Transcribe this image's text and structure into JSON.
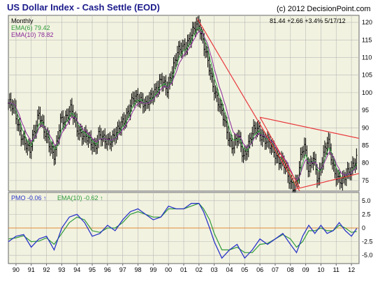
{
  "header": {
    "title": "US Dollar Index - Cash Settle (EOD)",
    "source": "(c) 2012 DecisionPoint.com",
    "quote": "81.44  +2.66  +3.4%  5/17/12"
  },
  "colors": {
    "background": "#f2f2e0",
    "frame": "#666666",
    "grid": "#b8b8b8",
    "price": "#000000",
    "ema6": "#2e9a3a",
    "ema10": "#8a2a9a",
    "trendline": "#e8383c",
    "pmo_line": "#2a36c8",
    "pmo_signal": "#2e9a3a",
    "pmo_zero": "#e08a3a",
    "dashed_level": "#b02a5a",
    "title": "#1a1a8a",
    "axis_text": "#000000"
  },
  "chart_data": [
    {
      "type": "line",
      "title": "US Dollar Index - Cash Settle (EOD)",
      "period_label": "Monthly",
      "legend_placement": "top-left",
      "grid": true,
      "ylim": [
        72,
        122
      ],
      "yticks": [
        75,
        80,
        85,
        90,
        95,
        100,
        105,
        110,
        115,
        120
      ],
      "ytick_labels": [
        "75",
        "80",
        "85",
        "90",
        "95",
        "100",
        "105",
        "110",
        "115",
        "120"
      ],
      "xlim": [
        1989.5,
        2012.5
      ],
      "series": [
        {
          "name": "US Dollar Index",
          "style": "ohlc-bars",
          "x": [
            1989.5,
            1989.9,
            1990.2,
            1990.6,
            1990.9,
            1991.1,
            1991.5,
            1991.8,
            1992.1,
            1992.5,
            1992.7,
            1992.9,
            1993.2,
            1993.6,
            1994.0,
            1994.4,
            1994.8,
            1995.2,
            1995.4,
            1995.8,
            1996.2,
            1996.6,
            1997.0,
            1997.4,
            1997.7,
            1998.1,
            1998.5,
            1998.8,
            1999.1,
            1999.5,
            1999.9,
            2000.2,
            2000.6,
            2000.9,
            2001.2,
            2001.5,
            2001.8,
            2002.0,
            2002.2,
            2002.5,
            2002.8,
            2003.1,
            2003.5,
            2003.9,
            2004.2,
            2004.6,
            2004.9,
            2005.2,
            2005.6,
            2005.9,
            2006.2,
            2006.6,
            2006.9,
            2007.2,
            2007.6,
            2007.9,
            2008.2,
            2008.45,
            2008.7,
            2008.9,
            2009.2,
            2009.5,
            2009.8,
            2010.1,
            2010.45,
            2010.8,
            2011.1,
            2011.4,
            2011.7,
            2012.0,
            2012.35
          ],
          "values": [
            97,
            95,
            90,
            85,
            83,
            88,
            94,
            89,
            87,
            82,
            85,
            92,
            93,
            95,
            90,
            88,
            86,
            85,
            88,
            86,
            87,
            88,
            92,
            95,
            98,
            99,
            96,
            98,
            101,
            103,
            101,
            106,
            111,
            113,
            114,
            116,
            119,
            120,
            116,
            110,
            104,
            100,
            94,
            88,
            85,
            87,
            82,
            85,
            89,
            90,
            87,
            85,
            84,
            81,
            79,
            76,
            73,
            74,
            82,
            86,
            78,
            81,
            75,
            82,
            86,
            79,
            76,
            74,
            77,
            79,
            81
          ],
          "note": "monthly bars approximated; last value 81.44"
        },
        {
          "name": "EMA(6) 79.42",
          "values_last": 79.42
        },
        {
          "name": "EMA(10) 78.82",
          "values_last": 78.82
        }
      ],
      "trendlines": [
        {
          "x": [
            2001.9,
            2008.6
          ],
          "y": [
            121,
            72
          ]
        },
        {
          "x": [
            2006.0,
            2008.6
          ],
          "y": [
            93,
            73
          ]
        },
        {
          "x": [
            2006.0,
            2012.5
          ],
          "y": [
            93,
            87
          ]
        },
        {
          "x": [
            2008.3,
            2012.5
          ],
          "y": [
            72.5,
            77
          ]
        }
      ],
      "reference_level": 71.5
    },
    {
      "type": "line",
      "title": "",
      "grid": true,
      "legend_placement": "top-left",
      "ylim": [
        -6.5,
        6.5
      ],
      "yticks": [
        5.0,
        2.5,
        0,
        -2.5,
        -5.0
      ],
      "ytick_labels": [
        "5.0",
        "2.5",
        "0",
        "-2.5",
        "-5.0"
      ],
      "x_tick_labels": [
        "90",
        "91",
        "92",
        "93",
        "94",
        "95",
        "96",
        "97",
        "98",
        "99",
        "00",
        "01",
        "02",
        "03",
        "04",
        "05",
        "06",
        "07",
        "08",
        "09",
        "10",
        "11",
        "12"
      ],
      "x_tick_values": [
        1990,
        1991,
        1992,
        1993,
        1994,
        1995,
        1996,
        1997,
        1998,
        1999,
        2000,
        2001,
        2002,
        2003,
        2004,
        2005,
        2006,
        2007,
        2008,
        2009,
        2010,
        2011,
        2012
      ],
      "series": [
        {
          "name": "PMO -0.06",
          "label_value": "-0.06",
          "x": [
            1989.5,
            1990.0,
            1990.5,
            1991.0,
            1991.5,
            1992.0,
            1992.5,
            1993.0,
            1993.5,
            1994.0,
            1994.5,
            1995.0,
            1995.5,
            1996.0,
            1996.5,
            1997.0,
            1997.5,
            1998.0,
            1998.5,
            1999.0,
            1999.5,
            2000.0,
            2000.5,
            2001.0,
            2001.5,
            2002.0,
            2002.3,
            2002.7,
            2003.0,
            2003.5,
            2004.0,
            2004.5,
            2005.0,
            2005.5,
            2006.0,
            2006.5,
            2007.0,
            2007.5,
            2008.0,
            2008.4,
            2008.8,
            2009.2,
            2009.6,
            2010.0,
            2010.4,
            2010.8,
            2011.2,
            2011.6,
            2012.0,
            2012.35
          ],
          "values": [
            -2.5,
            -1.5,
            -1.2,
            -3.5,
            -2.0,
            -1.5,
            -4.0,
            0.0,
            2.0,
            2.5,
            1.0,
            -1.5,
            -1.0,
            0.5,
            -0.5,
            1.5,
            3.0,
            3.5,
            2.5,
            1.5,
            2.0,
            4.0,
            3.5,
            3.5,
            4.5,
            4.5,
            3.0,
            0.0,
            -2.5,
            -5.5,
            -4.0,
            -3.0,
            -5.5,
            -4.0,
            -2.0,
            -3.0,
            -2.0,
            -1.0,
            -3.0,
            -4.5,
            -1.5,
            0.5,
            -1.0,
            0.5,
            -1.0,
            -0.5,
            1.0,
            -0.5,
            -1.5,
            -0.06
          ]
        },
        {
          "name": "EMA(10) -0.62",
          "label_value": "-0.62",
          "x": [
            1989.5,
            1990.0,
            1990.5,
            1991.0,
            1991.5,
            1992.0,
            1992.5,
            1993.0,
            1993.5,
            1994.0,
            1994.5,
            1995.0,
            1995.5,
            1996.0,
            1996.5,
            1997.0,
            1997.5,
            1998.0,
            1998.5,
            1999.0,
            1999.5,
            2000.0,
            2000.5,
            2001.0,
            2001.5,
            2002.0,
            2002.3,
            2002.7,
            2003.0,
            2003.5,
            2004.0,
            2004.5,
            2005.0,
            2005.5,
            2006.0,
            2006.5,
            2007.0,
            2007.5,
            2008.0,
            2008.4,
            2008.8,
            2009.2,
            2009.6,
            2010.0,
            2010.4,
            2010.8,
            2011.2,
            2011.6,
            2012.0,
            2012.35
          ],
          "values": [
            -2.0,
            -1.8,
            -1.4,
            -2.5,
            -2.4,
            -1.8,
            -3.0,
            -1.0,
            1.0,
            2.0,
            1.5,
            -0.5,
            -0.8,
            0.0,
            0.0,
            1.0,
            2.5,
            3.0,
            2.5,
            2.0,
            2.0,
            3.5,
            3.5,
            3.5,
            4.0,
            4.5,
            3.5,
            1.5,
            -1.0,
            -4.0,
            -4.0,
            -3.5,
            -4.5,
            -4.5,
            -3.0,
            -2.8,
            -2.0,
            -1.2,
            -2.0,
            -3.5,
            -2.5,
            -0.5,
            -0.5,
            0.0,
            -0.5,
            -0.5,
            0.5,
            0.0,
            -0.8,
            -0.62
          ]
        }
      ]
    }
  ]
}
